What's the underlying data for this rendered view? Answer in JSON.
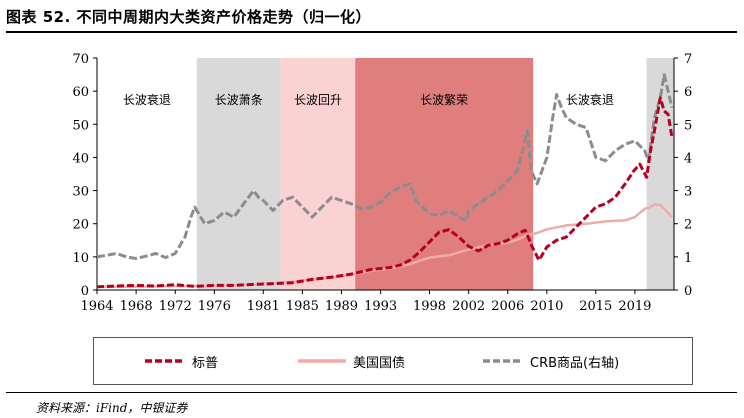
{
  "figure": {
    "title": "图表 52. 不同中周期内大类资产价格走势（归一化）",
    "source": "资料来源：iFind，中银证券"
  },
  "colors": {
    "sp500": "#b5001f",
    "treasury": "#efaaaa",
    "crb": "#8c8c8c",
    "recession": "#d9d9d9",
    "depression": "#d9d9d9",
    "recovery": "#fbd2d2",
    "prosperity": "#e07e7e"
  },
  "chart_data": {
    "type": "line",
    "title": "不同中周期内大类资产价格走势（归一化）",
    "x_ticks": [
      "1964",
      "1968",
      "1972",
      "1976",
      "1981",
      "1985",
      "1989",
      "1993",
      "1998",
      "2002",
      "2006",
      "2010",
      "2015",
      "2019"
    ],
    "x_tick_years": [
      1964,
      1968,
      1972,
      1976,
      1981,
      1985,
      1989,
      1993,
      1998,
      2002,
      2006,
      2010,
      2015,
      2019
    ],
    "x_range": [
      1964,
      2023
    ],
    "y_left": {
      "range": [
        0,
        70
      ],
      "ticks": [
        "0",
        "10",
        "20",
        "30",
        "40",
        "50",
        "60",
        "70"
      ]
    },
    "y_right": {
      "range": [
        0,
        7
      ],
      "ticks": [
        "0",
        "1",
        "2",
        "3",
        "4",
        "5",
        "6",
        "7"
      ]
    },
    "periods": [
      {
        "label": "长波衰退",
        "start": 1964,
        "end": 1974.2,
        "shade": "none"
      },
      {
        "label": "长波萧条",
        "start": 1974.2,
        "end": 1982.8,
        "shade": "depression"
      },
      {
        "label": "长波回升",
        "start": 1982.8,
        "end": 1990.4,
        "shade": "recovery"
      },
      {
        "label": "长波繁荣",
        "start": 1990.4,
        "end": 2008.6,
        "shade": "prosperity"
      },
      {
        "label": "长波衰退",
        "start": 2008.6,
        "end": 2020.2,
        "shade": "none"
      },
      {
        "label": "",
        "start": 2020.2,
        "end": 2023,
        "shade": "recession"
      }
    ],
    "series": [
      {
        "name": "标普",
        "axis": "left",
        "style": "dashed-thick",
        "x": [
          1964,
          1966,
          1968,
          1970,
          1972,
          1974,
          1976,
          1978,
          1980,
          1982,
          1984,
          1986,
          1988,
          1990,
          1992,
          1994,
          1995,
          1996,
          1997,
          1998,
          1999,
          2000,
          2001,
          2002,
          2003,
          2004,
          2005,
          2006,
          2007,
          2007.8,
          2008.5,
          2009.2,
          2010,
          2011,
          2012,
          2013,
          2014,
          2015,
          2016,
          2017,
          2018,
          2018.9,
          2019.5,
          2020.2,
          2020.6,
          2021,
          2021.6,
          2022,
          2022.4,
          2022.8
        ],
        "values": [
          1,
          1.2,
          1.4,
          1.2,
          1.6,
          1.1,
          1.4,
          1.4,
          1.7,
          1.9,
          2.2,
          3.2,
          3.9,
          4.8,
          6.2,
          6.8,
          7.5,
          9,
          11.5,
          14.5,
          17.5,
          18.2,
          16,
          13.2,
          11.8,
          13.5,
          14,
          15,
          17,
          18,
          13,
          9,
          13,
          15,
          16,
          19,
          22,
          25,
          26,
          28,
          32,
          36,
          38,
          34,
          42,
          48,
          58,
          54,
          53,
          46
        ]
      },
      {
        "name": "美国国债",
        "axis": "right",
        "style": "solid",
        "x": [
          1964,
          1968,
          1972,
          1976,
          1980,
          1984,
          1988,
          1990,
          1992,
          1994,
          1996,
          1998,
          2000,
          2002,
          2004,
          2006,
          2007,
          2008,
          2009,
          2010,
          2012,
          2014,
          2016,
          2018,
          2019,
          2020,
          2020.6,
          2021,
          2021.6,
          2022,
          2022.5,
          2022.8
        ],
        "values": [
          0.1,
          0.1,
          0.12,
          0.13,
          0.16,
          0.25,
          0.38,
          0.46,
          0.58,
          0.65,
          0.78,
          0.98,
          1.05,
          1.22,
          1.35,
          1.43,
          1.52,
          1.66,
          1.72,
          1.83,
          1.95,
          2.0,
          2.07,
          2.1,
          2.2,
          2.45,
          2.5,
          2.58,
          2.56,
          2.45,
          2.3,
          2.2
        ]
      },
      {
        "name": "CRB商品(右轴)",
        "axis": "right",
        "style": "dashed-thick",
        "x": [
          1964,
          1966,
          1967,
          1968,
          1969,
          1970,
          1971,
          1972,
          1973,
          1973.6,
          1974,
          1974.6,
          1975,
          1975.5,
          1976,
          1977,
          1978,
          1979,
          1980,
          1980.5,
          1981,
          1982,
          1983,
          1984,
          1985,
          1986,
          1987,
          1988,
          1989,
          1990,
          1991,
          1992,
          1993,
          1994,
          1995,
          1996,
          1996.6,
          1997,
          1998,
          1999,
          2000,
          2001,
          2001.8,
          2002,
          2003,
          2004,
          2005,
          2006,
          2007,
          2008,
          2008.4,
          2009,
          2010,
          2010.6,
          2011,
          2011.5,
          2012,
          2013,
          2014,
          2015,
          2016,
          2017,
          2018,
          2019,
          2020,
          2020.4,
          2021,
          2021.6,
          2022,
          2022.4,
          2022.8
        ],
        "values": [
          1.0,
          1.1,
          1.0,
          0.95,
          1.02,
          1.1,
          0.98,
          1.1,
          1.6,
          2.2,
          2.5,
          2.2,
          2.0,
          2.05,
          2.1,
          2.35,
          2.2,
          2.6,
          3.0,
          2.8,
          2.7,
          2.4,
          2.7,
          2.8,
          2.5,
          2.2,
          2.5,
          2.8,
          2.7,
          2.6,
          2.45,
          2.5,
          2.65,
          2.95,
          3.1,
          3.2,
          2.7,
          2.6,
          2.3,
          2.25,
          2.4,
          2.2,
          2.1,
          2.4,
          2.6,
          2.8,
          3.0,
          3.3,
          3.6,
          4.8,
          3.6,
          3.2,
          4.0,
          5.2,
          5.9,
          5.5,
          5.2,
          5.0,
          4.9,
          4.0,
          3.9,
          4.2,
          4.4,
          4.5,
          4.2,
          3.9,
          5.2,
          5.8,
          6.5,
          6.0,
          5.5
        ]
      }
    ]
  },
  "legend": {
    "items": [
      "标普",
      "美国国债",
      "CRB商品(右轴)"
    ]
  }
}
